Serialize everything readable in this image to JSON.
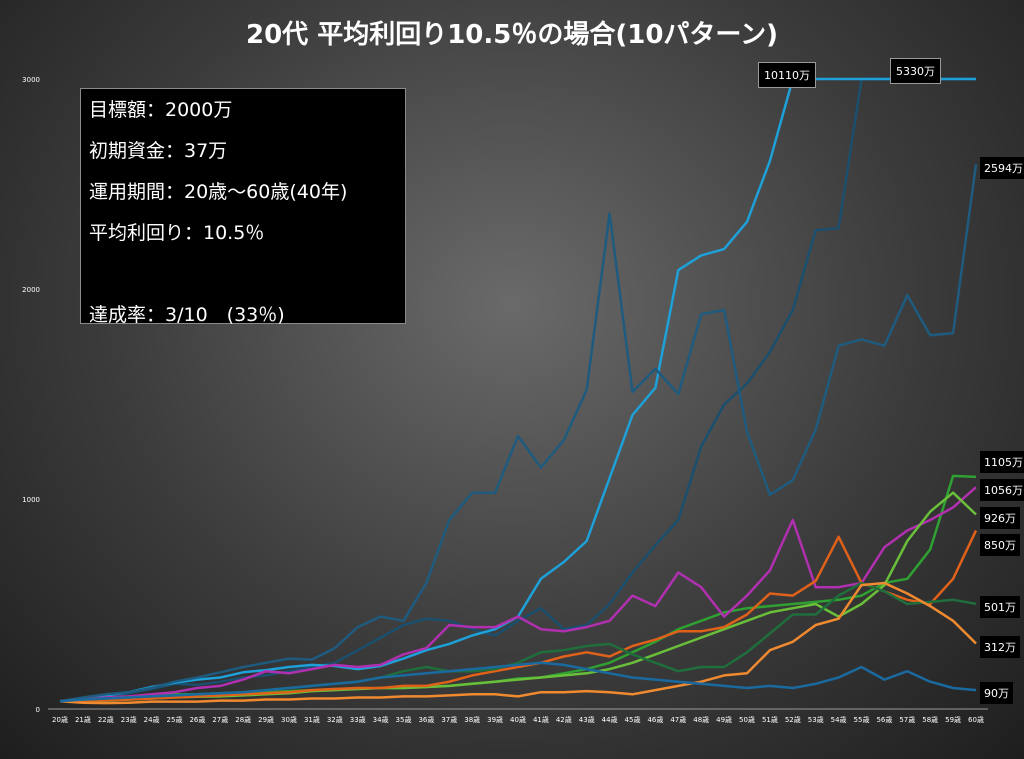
{
  "info": {
    "lines": [
      "目標額：2000万",
      "初期資金：37万",
      "運用期間：20歳～60歳(40年)",
      "平均利回り：10.5％",
      "",
      "達成率：3/10　(33％)"
    ]
  },
  "chart_data": {
    "type": "line",
    "title": "20代 平均利回り10.5％の場合(10パターン)",
    "xlabel": "",
    "ylabel": "",
    "ylim": [
      0,
      3000
    ],
    "yticks": [
      0,
      1000,
      2000,
      3000
    ],
    "grid": false,
    "categories": [
      "20歳",
      "21歳",
      "22歳",
      "23歳",
      "24歳",
      "25歳",
      "26歳",
      "27歳",
      "28歳",
      "29歳",
      "30歳",
      "31歳",
      "32歳",
      "33歳",
      "34歳",
      "35歳",
      "36歳",
      "37歳",
      "38歳",
      "39歳",
      "40歳",
      "41歳",
      "42歳",
      "43歳",
      "44歳",
      "45歳",
      "46歳",
      "47歳",
      "48歳",
      "49歳",
      "50歳",
      "51歳",
      "52歳",
      "53歳",
      "54歳",
      "55歳",
      "56歳",
      "57歳",
      "58歳",
      "59歳",
      "60歳"
    ],
    "series": [
      {
        "color": "#1a4f6e",
        "end_label": "5330万",
        "values": [
          37,
          45,
          60,
          75,
          95,
          120,
          115,
          130,
          150,
          160,
          180,
          200,
          220,
          280,
          340,
          400,
          430,
          420,
          380,
          350,
          420,
          480,
          380,
          400,
          500,
          650,
          780,
          900,
          1250,
          1450,
          1550,
          1700,
          1900,
          2280,
          2290,
          3000,
          3000,
          3000,
          3000,
          3000,
          3000
        ]
      },
      {
        "color": "#1ea0d8",
        "end_label": "10110万",
        "values": [
          37,
          50,
          65,
          80,
          105,
          125,
          140,
          150,
          175,
          185,
          200,
          210,
          205,
          190,
          205,
          240,
          280,
          310,
          350,
          380,
          440,
          620,
          700,
          800,
          1100,
          1400,
          1530,
          2090,
          2160,
          2190,
          2320,
          2610,
          3000,
          3000,
          3000,
          3000,
          3000,
          3000,
          3000,
          3000,
          3000
        ]
      },
      {
        "color": "#1e5b7e",
        "end_label": "2594万",
        "values": [
          37,
          55,
          70,
          80,
          100,
          130,
          150,
          175,
          200,
          220,
          240,
          235,
          290,
          390,
          440,
          420,
          600,
          900,
          1030,
          1030,
          1300,
          1150,
          1280,
          1520,
          2360,
          1510,
          1620,
          1500,
          1880,
          1900,
          1320,
          1020,
          1090,
          1330,
          1730,
          1760,
          1730,
          1970,
          1780,
          1790,
          2594
        ]
      },
      {
        "color": "#2fa032",
        "end_label": "1105万",
        "values": [
          37,
          40,
          50,
          55,
          60,
          70,
          70,
          75,
          80,
          80,
          85,
          90,
          95,
          95,
          100,
          100,
          105,
          110,
          120,
          130,
          145,
          150,
          170,
          190,
          220,
          270,
          320,
          380,
          420,
          460,
          480,
          490,
          500,
          510,
          520,
          540,
          600,
          620,
          760,
          1110,
          1105
        ]
      },
      {
        "color": "#b030b0",
        "end_label": "1056万",
        "values": [
          37,
          45,
          55,
          60,
          70,
          80,
          100,
          110,
          140,
          180,
          170,
          190,
          210,
          200,
          210,
          260,
          290,
          400,
          390,
          390,
          440,
          380,
          370,
          390,
          420,
          540,
          490,
          650,
          580,
          440,
          540,
          660,
          900,
          580,
          580,
          600,
          770,
          850,
          900,
          960,
          1056
        ]
      },
      {
        "color": "#6abf3a",
        "end_label": "926万",
        "values": [
          37,
          38,
          40,
          45,
          50,
          55,
          58,
          60,
          65,
          70,
          75,
          85,
          90,
          95,
          100,
          100,
          105,
          110,
          120,
          130,
          140,
          150,
          160,
          170,
          190,
          220,
          260,
          300,
          340,
          380,
          420,
          460,
          480,
          500,
          440,
          500,
          590,
          800,
          940,
          1030,
          926
        ]
      },
      {
        "color": "#e0611a",
        "end_label": "850万",
        "values": [
          37,
          40,
          42,
          45,
          50,
          55,
          60,
          65,
          70,
          75,
          80,
          90,
          95,
          100,
          100,
          110,
          110,
          130,
          160,
          180,
          200,
          220,
          250,
          270,
          250,
          300,
          330,
          370,
          370,
          390,
          450,
          550,
          540,
          610,
          820,
          600,
          560,
          520,
          500,
          620,
          850
        ]
      },
      {
        "color": "#1f6e3c",
        "end_label": "501万",
        "values": [
          37,
          45,
          50,
          55,
          60,
          65,
          70,
          75,
          80,
          90,
          100,
          110,
          120,
          130,
          150,
          180,
          200,
          180,
          180,
          190,
          220,
          270,
          280,
          300,
          310,
          260,
          220,
          180,
          200,
          200,
          270,
          360,
          450,
          450,
          540,
          600,
          560,
          500,
          510,
          520,
          501
        ]
      },
      {
        "color": "#f08a30",
        "end_label": "312万",
        "values": [
          37,
          30,
          28,
          30,
          35,
          35,
          35,
          40,
          40,
          45,
          45,
          50,
          50,
          55,
          55,
          60,
          60,
          65,
          70,
          70,
          60,
          80,
          80,
          85,
          80,
          70,
          90,
          110,
          130,
          160,
          170,
          280,
          320,
          400,
          430,
          590,
          600,
          550,
          490,
          420,
          312
        ]
      },
      {
        "color": "#1a6aa0",
        "end_label": "90万",
        "values": [
          37,
          45,
          50,
          55,
          60,
          65,
          70,
          75,
          80,
          90,
          100,
          110,
          120,
          130,
          150,
          160,
          170,
          180,
          190,
          200,
          210,
          220,
          210,
          190,
          170,
          150,
          140,
          130,
          120,
          110,
          100,
          110,
          100,
          120,
          150,
          200,
          140,
          180,
          130,
          100,
          90
        ]
      }
    ]
  }
}
